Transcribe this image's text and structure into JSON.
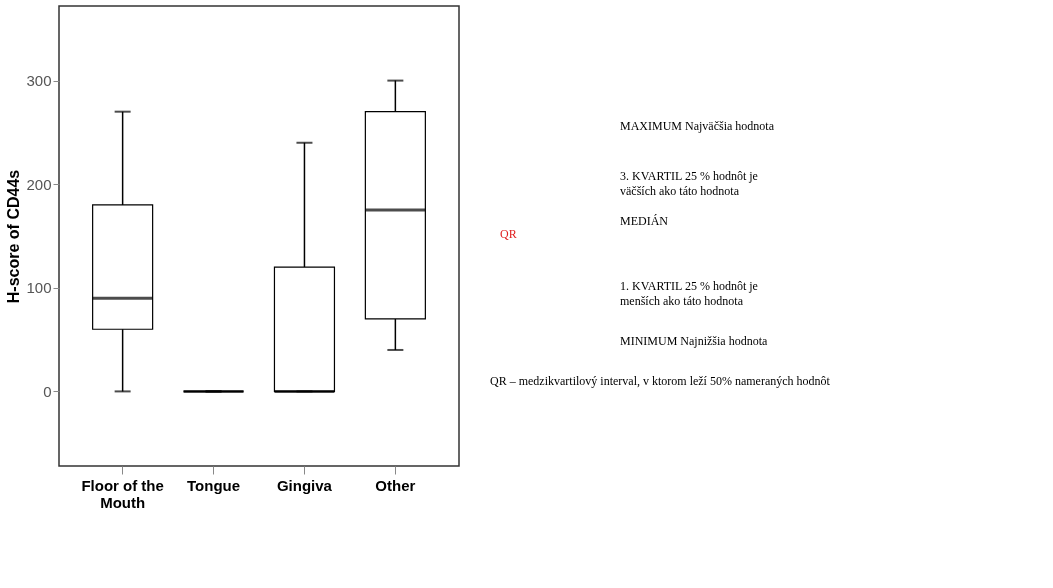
{
  "chart_data": {
    "type": "box",
    "ylabel": "H-score of CD44s",
    "categories": [
      "Floor of the Mouth",
      "Tongue",
      "Gingiva",
      "Other"
    ],
    "boxes": [
      {
        "low": 0,
        "q1": 60,
        "median": 90,
        "q3": 180,
        "high": 270
      },
      {
        "low": 0,
        "q1": 0,
        "median": 0,
        "q3": 0,
        "high": 0
      },
      {
        "low": 0,
        "q1": 0,
        "median": 0,
        "q3": 120,
        "high": 240
      },
      {
        "low": 40,
        "q1": 70,
        "median": 175,
        "q3": 270,
        "high": 300
      }
    ],
    "ylim": [
      -72,
      372
    ],
    "yticks": [
      0,
      100,
      200,
      300
    ],
    "grid": false,
    "annotations": [
      "MAXIMUM Najväčšia hodnota",
      "3. KVARTIL 25 % hodnôt je väčších ako táto hodnota",
      "MEDIÁN",
      "1. KVARTIL 25 % hodnôt je menších ako táto hodnota",
      "MINIMUM Najnižšia hodnota",
      "QR",
      "QR – medzikvartilový interval, v ktorom leží 50% nameraných hodnôt"
    ]
  }
}
